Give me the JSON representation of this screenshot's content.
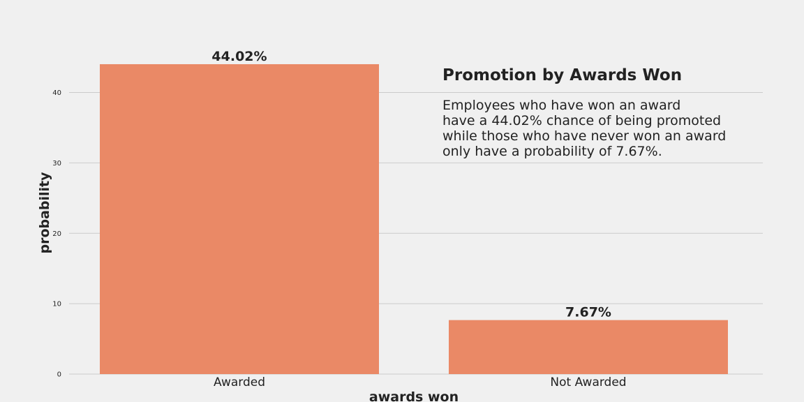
{
  "chart_data": {
    "type": "bar",
    "categories": [
      "Awarded",
      "Not Awarded"
    ],
    "values": [
      44.02,
      7.67
    ],
    "data_labels": [
      "44.02%",
      "7.67%"
    ],
    "xlabel": "awards won",
    "ylabel": "probability",
    "ylim": [
      0,
      46
    ],
    "yticks": [
      0,
      10,
      20,
      30,
      40
    ],
    "grid": "horizontal",
    "bar_color": "#ea8966",
    "grid_color": "#cbcbcb",
    "background_color": "#f0f0f0",
    "annotation": {
      "title": "Promotion by Awards Won",
      "lines": [
        "Employees who have won an award",
        "have a 44.02% chance of being promoted",
        "while those who have never won an award",
        "only have a probability of 7.67%."
      ]
    }
  }
}
